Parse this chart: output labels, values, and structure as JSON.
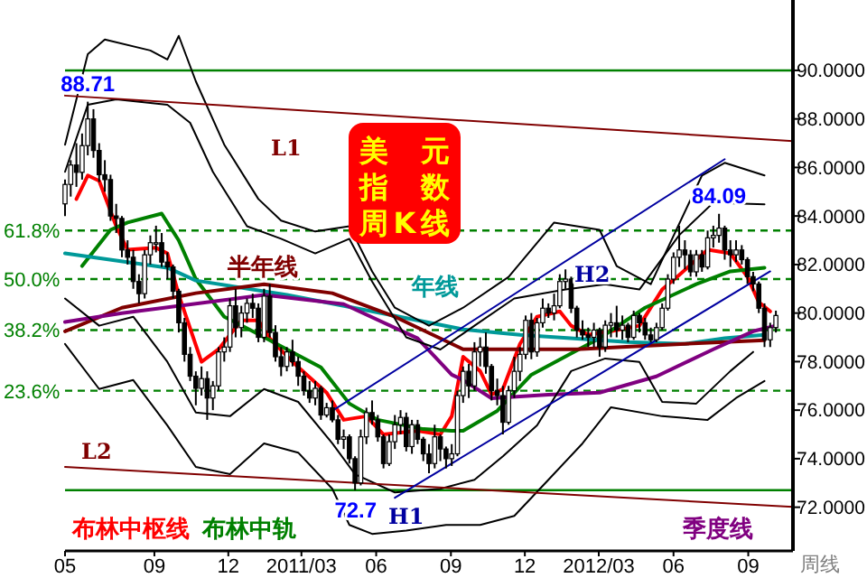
{
  "chart_data": {
    "type": "candlestick",
    "title": "美元指数周K线",
    "x": [
      "2010-05-14",
      "2010-05-21",
      "2010-05-28",
      "2010-06-04",
      "2010-06-11",
      "2010-06-18",
      "2010-06-25",
      "2010-07-02",
      "2010-07-09",
      "2010-07-16",
      "2010-07-23",
      "2010-07-30",
      "2010-08-06",
      "2010-08-13",
      "2010-08-20",
      "2010-08-27",
      "2010-09-03",
      "2010-09-10",
      "2010-09-17",
      "2010-09-24",
      "2010-10-01",
      "2010-10-08",
      "2010-10-15",
      "2010-10-22",
      "2010-10-29",
      "2010-11-05",
      "2010-11-12",
      "2010-11-19",
      "2010-11-26",
      "2010-12-03",
      "2010-12-10",
      "2010-12-17",
      "2010-12-24",
      "2010-12-31",
      "2011-01-07",
      "2011-01-14",
      "2011-01-21",
      "2011-01-28",
      "2011-02-04",
      "2011-02-11",
      "2011-02-18",
      "2011-02-25",
      "2011-03-04",
      "2011-03-11",
      "2011-03-18",
      "2011-03-25",
      "2011-04-01",
      "2011-04-08",
      "2011-04-15",
      "2011-04-22",
      "2011-04-29",
      "2011-05-06",
      "2011-05-13",
      "2011-05-20",
      "2011-05-27",
      "2011-06-03",
      "2011-06-10",
      "2011-06-17",
      "2011-06-24",
      "2011-07-01",
      "2011-07-08",
      "2011-07-15",
      "2011-07-22",
      "2011-07-29",
      "2011-08-05",
      "2011-08-12",
      "2011-08-19",
      "2011-08-26",
      "2011-09-02",
      "2011-09-09",
      "2011-09-16",
      "2011-09-23",
      "2011-09-30",
      "2011-10-07",
      "2011-10-14",
      "2011-10-21",
      "2011-10-28",
      "2011-11-04",
      "2011-11-11",
      "2011-11-18",
      "2011-11-25",
      "2011-12-02",
      "2011-12-09",
      "2011-12-16",
      "2011-12-23",
      "2011-12-30",
      "2012-01-06",
      "2012-01-13",
      "2012-01-20",
      "2012-01-27",
      "2012-02-03",
      "2012-02-10",
      "2012-02-17",
      "2012-02-24",
      "2012-03-02",
      "2012-03-09",
      "2012-03-16",
      "2012-03-23",
      "2012-03-30",
      "2012-04-06",
      "2012-04-13",
      "2012-04-20",
      "2012-04-27",
      "2012-05-04",
      "2012-05-11",
      "2012-05-18",
      "2012-05-25",
      "2012-06-01",
      "2012-06-08",
      "2012-06-15",
      "2012-06-22",
      "2012-06-29",
      "2012-07-06",
      "2012-07-13",
      "2012-07-20",
      "2012-07-27",
      "2012-08-03",
      "2012-08-10",
      "2012-08-17",
      "2012-08-24",
      "2012-08-31",
      "2012-09-07",
      "2012-09-14",
      "2012-09-21",
      "2012-09-28",
      "2012-10-05"
    ],
    "ohlc": [
      [
        84.5,
        85.5,
        84.0,
        85.3
      ],
      [
        85.3,
        86.3,
        84.8,
        86.1
      ],
      [
        86.1,
        87.0,
        85.2,
        85.8
      ],
      [
        85.8,
        87.4,
        85.5,
        86.9
      ],
      [
        86.9,
        88.71,
        86.5,
        88.0
      ],
      [
        88.0,
        88.4,
        86.4,
        86.7
      ],
      [
        86.7,
        87.0,
        85.4,
        85.7
      ],
      [
        85.7,
        86.3,
        85.0,
        85.5
      ],
      [
        85.5,
        85.7,
        83.8,
        84.0
      ],
      [
        84.0,
        84.5,
        83.3,
        83.9
      ],
      [
        83.9,
        84.0,
        82.3,
        82.6
      ],
      [
        82.6,
        83.0,
        82.0,
        82.3
      ],
      [
        82.3,
        82.6,
        81.0,
        81.3
      ],
      [
        81.3,
        81.6,
        80.4,
        80.8
      ],
      [
        80.8,
        82.6,
        80.6,
        82.4
      ],
      [
        82.4,
        83.2,
        82.0,
        82.9
      ],
      [
        82.9,
        83.6,
        82.5,
        82.9
      ],
      [
        82.9,
        83.3,
        81.9,
        82.1
      ],
      [
        82.1,
        82.5,
        81.4,
        81.9
      ],
      [
        81.9,
        82.0,
        80.6,
        80.9
      ],
      [
        80.9,
        81.0,
        79.2,
        79.6
      ],
      [
        79.6,
        79.8,
        78.0,
        78.3
      ],
      [
        78.3,
        78.6,
        77.2,
        77.4
      ],
      [
        77.4,
        77.6,
        76.2,
        76.9
      ],
      [
        76.9,
        77.8,
        76.6,
        77.3
      ],
      [
        77.3,
        77.6,
        75.6,
        76.5
      ],
      [
        76.5,
        77.2,
        76.0,
        77.0
      ],
      [
        77.0,
        78.6,
        76.8,
        78.4
      ],
      [
        78.4,
        79.0,
        78.0,
        78.6
      ],
      [
        78.6,
        80.6,
        78.4,
        80.3
      ],
      [
        80.3,
        81.0,
        79.0,
        79.4
      ],
      [
        79.4,
        80.3,
        79.0,
        80.0
      ],
      [
        80.0,
        80.6,
        79.6,
        80.4
      ],
      [
        80.4,
        80.8,
        79.8,
        80.2
      ],
      [
        80.2,
        80.4,
        78.8,
        79.0
      ],
      [
        79.0,
        81.0,
        78.8,
        80.7
      ],
      [
        80.7,
        81.2,
        79.0,
        79.2
      ],
      [
        79.2,
        79.5,
        78.0,
        78.2
      ],
      [
        78.2,
        78.6,
        77.4,
        77.8
      ],
      [
        77.8,
        78.6,
        77.6,
        78.4
      ],
      [
        78.4,
        78.9,
        77.8,
        78.0
      ],
      [
        78.0,
        78.2,
        77.0,
        77.4
      ],
      [
        77.4,
        77.6,
        76.6,
        76.8
      ],
      [
        76.8,
        77.2,
        76.3,
        76.5
      ],
      [
        76.5,
        77.2,
        76.2,
        76.9
      ],
      [
        76.9,
        77.0,
        75.6,
        75.8
      ],
      [
        75.8,
        76.3,
        75.7,
        76.1
      ],
      [
        76.1,
        76.4,
        75.5,
        75.6
      ],
      [
        75.6,
        75.8,
        74.6,
        74.8
      ],
      [
        74.8,
        75.2,
        74.4,
        74.9
      ],
      [
        74.9,
        75.0,
        73.8,
        74.0
      ],
      [
        74.0,
        74.1,
        72.7,
        73.0
      ],
      [
        73.0,
        75.2,
        72.9,
        74.9
      ],
      [
        74.9,
        76.1,
        74.6,
        75.9
      ],
      [
        75.9,
        76.4,
        75.4,
        75.6
      ],
      [
        75.6,
        75.8,
        74.7,
        74.9
      ],
      [
        74.9,
        75.0,
        73.6,
        73.8
      ],
      [
        73.8,
        75.0,
        73.7,
        74.7
      ],
      [
        74.7,
        75.8,
        74.4,
        75.4
      ],
      [
        75.4,
        76.0,
        75.0,
        75.7
      ],
      [
        75.7,
        75.9,
        74.3,
        74.5
      ],
      [
        74.5,
        75.6,
        74.2,
        75.4
      ],
      [
        75.4,
        75.6,
        74.6,
        74.8
      ],
      [
        74.8,
        74.9,
        73.9,
        74.2
      ],
      [
        74.2,
        74.6,
        73.4,
        73.8
      ],
      [
        73.8,
        75.4,
        73.6,
        74.9
      ],
      [
        74.9,
        75.0,
        73.9,
        74.4
      ],
      [
        74.4,
        74.5,
        73.6,
        74.0
      ],
      [
        74.0,
        74.6,
        73.7,
        74.2
      ],
      [
        74.2,
        76.8,
        74.1,
        76.6
      ],
      [
        76.6,
        77.8,
        76.3,
        77.6
      ],
      [
        77.6,
        77.9,
        76.5,
        77.0
      ],
      [
        77.0,
        78.8,
        76.8,
        78.4
      ],
      [
        78.4,
        79.0,
        77.8,
        78.6
      ],
      [
        78.6,
        79.2,
        77.5,
        77.8
      ],
      [
        77.8,
        77.9,
        76.4,
        76.8
      ],
      [
        76.8,
        77.3,
        76.2,
        76.6
      ],
      [
        76.6,
        77.0,
        75.0,
        75.5
      ],
      [
        75.5,
        77.0,
        75.4,
        76.8
      ],
      [
        76.8,
        78.2,
        76.5,
        77.6
      ],
      [
        77.6,
        78.6,
        77.2,
        78.3
      ],
      [
        78.3,
        79.9,
        78.1,
        79.7
      ],
      [
        79.7,
        80.0,
        78.1,
        78.4
      ],
      [
        78.4,
        79.8,
        78.2,
        79.6
      ],
      [
        79.6,
        80.6,
        79.4,
        80.2
      ],
      [
        80.2,
        80.4,
        79.8,
        80.0
      ],
      [
        80.0,
        80.8,
        79.7,
        80.3
      ],
      [
        80.3,
        81.6,
        80.2,
        81.3
      ],
      [
        81.3,
        81.8,
        81.0,
        81.4
      ],
      [
        81.4,
        81.5,
        80.0,
        80.2
      ],
      [
        80.2,
        80.3,
        79.0,
        79.3
      ],
      [
        79.3,
        79.7,
        78.9,
        79.1
      ],
      [
        79.1,
        79.4,
        78.6,
        79.0
      ],
      [
        79.0,
        79.6,
        78.6,
        79.3
      ],
      [
        79.3,
        79.4,
        78.2,
        78.6
      ],
      [
        78.6,
        79.7,
        78.4,
        79.5
      ],
      [
        79.5,
        80.0,
        79.0,
        79.6
      ],
      [
        79.6,
        80.3,
        79.0,
        79.3
      ],
      [
        79.3,
        79.9,
        78.9,
        79.5
      ],
      [
        79.5,
        79.6,
        78.8,
        79.0
      ],
      [
        79.0,
        80.1,
        78.9,
        79.9
      ],
      [
        79.9,
        80.0,
        79.2,
        79.6
      ],
      [
        79.6,
        79.8,
        78.9,
        79.1
      ],
      [
        79.1,
        79.4,
        78.8,
        78.9
      ],
      [
        78.9,
        79.6,
        78.8,
        79.4
      ],
      [
        79.4,
        80.4,
        79.3,
        80.2
      ],
      [
        80.2,
        81.6,
        80.1,
        81.4
      ],
      [
        81.4,
        82.5,
        81.2,
        82.3
      ],
      [
        82.3,
        83.6,
        81.9,
        82.6
      ],
      [
        82.6,
        83.0,
        81.8,
        82.4
      ],
      [
        82.4,
        82.6,
        81.5,
        81.7
      ],
      [
        81.7,
        82.6,
        81.5,
        82.4
      ],
      [
        82.4,
        82.6,
        81.7,
        81.9
      ],
      [
        81.9,
        83.4,
        81.8,
        83.1
      ],
      [
        83.1,
        83.6,
        82.7,
        83.2
      ],
      [
        83.2,
        84.09,
        82.9,
        83.5
      ],
      [
        83.5,
        83.6,
        82.2,
        82.6
      ],
      [
        82.6,
        83.0,
        81.9,
        82.4
      ],
      [
        82.4,
        83.0,
        82.1,
        82.6
      ],
      [
        82.6,
        82.8,
        82.0,
        82.2
      ],
      [
        82.2,
        82.3,
        81.2,
        81.5
      ],
      [
        81.5,
        81.7,
        80.9,
        81.2
      ],
      [
        81.2,
        81.3,
        80.0,
        80.2
      ],
      [
        80.2,
        80.4,
        78.6,
        78.9
      ],
      [
        78.9,
        79.6,
        78.6,
        79.4
      ],
      [
        79.4,
        80.1,
        79.2,
        79.9
      ]
    ],
    "series": [
      {
        "name": "布林中枢线",
        "type": "line",
        "color": "#ff0000",
        "x": [
          "2010-05-28",
          "2010-06-11",
          "2010-06-25",
          "2010-07-16",
          "2010-07-30",
          "2010-09-03",
          "2010-09-17",
          "2010-10-01",
          "2010-10-29",
          "2010-11-19",
          "2010-12-17",
          "2011-01-07",
          "2011-01-21",
          "2011-02-18",
          "2011-04-01",
          "2011-04-22",
          "2011-05-20",
          "2011-06-10",
          "2011-07-22",
          "2011-08-19",
          "2011-09-02",
          "2011-09-16",
          "2011-10-07",
          "2011-10-21",
          "2011-11-04",
          "2011-11-25",
          "2011-12-16",
          "2012-01-13",
          "2012-01-27",
          "2012-02-17",
          "2012-03-16",
          "2012-04-20",
          "2012-05-18",
          "2012-06-08",
          "2012-07-13",
          "2012-08-10",
          "2012-08-31",
          "2012-09-14",
          "2012-09-28"
        ],
        "values": [
          84.7,
          85.67,
          85.45,
          83.58,
          82.61,
          82.69,
          82.46,
          80.75,
          77.99,
          78.51,
          79.7,
          79.7,
          78.96,
          77.99,
          76.72,
          75.6,
          75.75,
          75.0,
          75.15,
          75.0,
          75.75,
          78.2,
          77.61,
          76.64,
          76.87,
          78.73,
          79.85,
          80.07,
          79.48,
          79.1,
          79.25,
          79.48,
          80.97,
          81.57,
          82.61,
          82.46,
          81.49,
          80.45,
          80.07
        ]
      },
      {
        "name": "布林中轨",
        "type": "line",
        "color": "#008000",
        "x": [
          "2010-06-04",
          "2010-07-09",
          "2010-07-30",
          "2010-09-10",
          "2010-10-01",
          "2010-10-22",
          "2010-11-26",
          "2010-12-31",
          "2011-02-11",
          "2011-03-25",
          "2011-04-29",
          "2011-06-03",
          "2011-07-29",
          "2011-09-02",
          "2011-09-16",
          "2011-10-28",
          "2011-12-09",
          "2012-01-20",
          "2012-03-02",
          "2012-04-27",
          "2012-06-29",
          "2012-08-10",
          "2012-09-21"
        ],
        "values": [
          81.94,
          83.43,
          83.73,
          84.1,
          82.99,
          81.4,
          79.85,
          79.25,
          78.51,
          77.76,
          76.27,
          75.6,
          75.22,
          75.15,
          75.15,
          75.97,
          77.46,
          78.21,
          78.96,
          80.22,
          81.19,
          81.72,
          81.87
        ]
      },
      {
        "name": "年线",
        "type": "line",
        "color": "#009999",
        "x": [
          "2010-05-14",
          "2010-09-17",
          "2010-10-22",
          "2011-02-11",
          "2011-05-27",
          "2011-09-16",
          "2011-11-25",
          "2012-04-06",
          "2012-06-15",
          "2012-08-03",
          "2012-09-21"
        ],
        "values": [
          82.46,
          81.87,
          81.34,
          80.75,
          80.07,
          79.33,
          79.1,
          78.81,
          78.73,
          78.96,
          79.1
        ]
      },
      {
        "name": "半年线",
        "type": "line",
        "color": "#800000",
        "x": [
          "2010-05-14",
          "2010-07-23",
          "2010-10-22",
          "2011-01-14",
          "2011-04-08",
          "2011-06-24",
          "2011-09-16",
          "2011-11-25",
          "2012-02-03",
          "2012-06-15",
          "2012-09-21"
        ],
        "values": [
          79.25,
          80.22,
          80.82,
          81.19,
          80.82,
          79.85,
          78.51,
          78.51,
          78.51,
          78.73,
          78.88
        ]
      },
      {
        "name": "季度线",
        "type": "line",
        "color": "#800080",
        "x": [
          "2010-05-14",
          "2010-07-23",
          "2011-01-14",
          "2011-04-22",
          "2011-07-22",
          "2011-09-02",
          "2011-09-16",
          "2011-10-21",
          "2011-12-30",
          "2012-03-02",
          "2012-05-11",
          "2012-07-20",
          "2012-09-07",
          "2012-10-05"
        ],
        "values": [
          79.63,
          80.0,
          80.75,
          80.37,
          78.96,
          77.46,
          77.24,
          76.49,
          76.64,
          76.72,
          77.39,
          78.51,
          79.25,
          79.48
        ]
      },
      {
        "type": "line",
        "color": "#000000",
        "x": [
          "2010-05-14",
          "2010-06-11",
          "2010-07-02",
          "2010-08-27",
          "2010-09-17",
          "2010-10-01",
          "2010-10-22",
          "2010-11-26",
          "2011-01-07",
          "2011-02-04",
          "2011-03-18",
          "2011-04-29",
          "2011-05-27",
          "2011-06-24",
          "2011-08-05",
          "2011-09-16",
          "2011-11-11",
          "2012-01-06",
          "2012-03-02",
          "2012-03-23",
          "2012-05-04",
          "2012-07-06",
          "2012-08-03",
          "2012-09-21"
        ],
        "values": [
          86.94,
          90.67,
          91.27,
          90.82,
          90.45,
          91.42,
          89.55,
          86.94,
          84.7,
          83.81,
          83.36,
          83.58,
          81.72,
          80.22,
          79.48,
          80.22,
          81.49,
          83.73,
          83.43,
          81.94,
          81.19,
          85.67,
          86.19,
          85.67
        ]
      },
      {
        "type": "line",
        "color": "#000000",
        "x": [
          "2010-05-14",
          "2010-06-11",
          "2010-07-16",
          "2010-09-17",
          "2010-10-15",
          "2010-11-12",
          "2010-12-24",
          "2011-02-04",
          "2011-03-18",
          "2011-04-29",
          "2011-05-27",
          "2011-07-08",
          "2011-08-19",
          "2011-09-30",
          "2011-11-18",
          "2012-01-20",
          "2012-03-09",
          "2012-04-20",
          "2012-06-08",
          "2012-07-20",
          "2012-09-21"
        ],
        "values": [
          85.82,
          88.58,
          88.81,
          88.58,
          87.84,
          85.82,
          83.58,
          83.06,
          82.46,
          83.06,
          81.3,
          79.0,
          78.5,
          79.48,
          80.6,
          80.97,
          81.19,
          80.97,
          83.21,
          84.55,
          84.48
        ]
      },
      {
        "type": "line",
        "color": "#000000",
        "x": [
          "2010-05-14",
          "2010-06-25",
          "2010-08-06",
          "2010-09-17",
          "2010-10-22",
          "2010-12-03",
          "2011-01-14",
          "2011-02-25",
          "2011-04-08",
          "2011-05-06",
          "2011-06-24",
          "2011-08-19",
          "2011-09-30",
          "2011-11-04",
          "2011-12-16",
          "2012-01-27",
          "2012-03-09",
          "2012-04-20",
          "2012-05-18",
          "2012-06-29",
          "2012-08-10",
          "2012-09-07"
        ],
        "values": [
          80.6,
          79.48,
          79.85,
          77.99,
          75.9,
          75.75,
          76.87,
          76.34,
          74.63,
          73.36,
          72.61,
          72.76,
          73.13,
          74.1,
          75.37,
          77.61,
          78.13,
          77.99,
          76.34,
          76.27,
          77.61,
          78.4
        ]
      },
      {
        "type": "line",
        "color": "#000000",
        "x": [
          "2010-05-14",
          "2010-06-25",
          "2010-08-06",
          "2010-09-17",
          "2010-10-22",
          "2010-12-03",
          "2011-01-14",
          "2011-02-25",
          "2011-04-08",
          "2011-04-29",
          "2011-05-27",
          "2011-07-08",
          "2011-08-26",
          "2011-10-07",
          "2011-11-18",
          "2011-12-30",
          "2012-02-10",
          "2012-03-16",
          "2012-05-18",
          "2012-07-13",
          "2012-08-17",
          "2012-09-21"
        ],
        "values": [
          78.73,
          76.87,
          77.24,
          75.37,
          73.66,
          73.36,
          74.63,
          74.25,
          72.76,
          71.27,
          70.9,
          71.04,
          71.27,
          71.27,
          71.64,
          73.13,
          74.63,
          76.12,
          75.75,
          75.6,
          76.5,
          77.2
        ]
      },
      {
        "name": "L1",
        "type": "line",
        "color": "#800000",
        "x": [
          "2010-05-14",
          "2012-10-26"
        ],
        "values": [
          88.96,
          87.09
        ]
      },
      {
        "name": "L2",
        "type": "line",
        "color": "#800000",
        "x": [
          "2010-05-14",
          "2012-10-26"
        ],
        "values": [
          73.66,
          72.01
        ]
      },
      {
        "name": "H1",
        "type": "line",
        "color": "#0000a0",
        "x": [
          "2011-06-24",
          "2012-09-28"
        ],
        "values": [
          72.39,
          81.72
        ]
      },
      {
        "name": "H2",
        "type": "line",
        "color": "#0000a0",
        "x": [
          "2011-04-08",
          "2012-08-03"
        ],
        "values": [
          75.97,
          86.34
        ]
      }
    ],
    "xlim": [
      "2010-05-14",
      "2012-10-26"
    ],
    "ylim": [
      70.2,
      92.9
    ],
    "xticks": [
      {
        "value": "2010-05-14",
        "label": "05"
      },
      {
        "value": "2010-09-01",
        "label": "09"
      },
      {
        "value": "2010-12-01",
        "label": "12"
      },
      {
        "value": "2011-03-01",
        "label": "2011/03"
      },
      {
        "value": "2011-06-01",
        "label": "06"
      },
      {
        "value": "2011-09-01",
        "label": "09"
      },
      {
        "value": "2011-12-01",
        "label": "12"
      },
      {
        "value": "2012-03-01",
        "label": "2012/03"
      },
      {
        "value": "2012-06-01",
        "label": "06"
      },
      {
        "value": "2012-09-01",
        "label": "09"
      }
    ],
    "yticks": [
      {
        "value": 72,
        "label": "72.0000"
      },
      {
        "value": 74,
        "label": "74.0000"
      },
      {
        "value": 76,
        "label": "76.0000"
      },
      {
        "value": 78,
        "label": "78.0000"
      },
      {
        "value": 80,
        "label": "80.0000"
      },
      {
        "value": 82,
        "label": "82.0000"
      },
      {
        "value": 84,
        "label": "84.0000"
      },
      {
        "value": 86,
        "label": "86.0000"
      },
      {
        "value": 88,
        "label": "88.0000"
      },
      {
        "value": 90,
        "label": "90.0000"
      }
    ],
    "ref_lines": [
      {
        "axis": "y",
        "value": 90,
        "color": "#008000",
        "line_style": "solid"
      },
      {
        "axis": "y",
        "value": 83.4,
        "color": "#008000",
        "line_style": "dashed"
      },
      {
        "axis": "y",
        "value": 81.4,
        "color": "#008000",
        "line_style": "dashed"
      },
      {
        "axis": "y",
        "value": 79.3,
        "color": "#008000",
        "line_style": "dashed"
      },
      {
        "axis": "y",
        "value": 76.8,
        "color": "#008000",
        "line_style": "dashed"
      },
      {
        "axis": "y",
        "value": 72.7,
        "color": "#008000",
        "line_style": "solid"
      }
    ],
    "annotations": [
      "周线",
      {
        "text": "61.8%",
        "x": "2010-05-14",
        "y": 83.4
      },
      {
        "text": "50.0%",
        "x": "2010-05-14",
        "y": 81.4
      },
      {
        "text": "38.2%",
        "x": "2010-05-14",
        "y": 79.3
      },
      {
        "text": "23.6%",
        "x": "2010-05-14",
        "y": 76.8
      },
      {
        "text": "88.71",
        "x": "2010-06-11",
        "y": 88.71
      },
      {
        "text": "84.09",
        "x": "2012-07-27",
        "y": 84.09
      },
      {
        "text": "72.7",
        "x": "2011-05-06",
        "y": 72.7
      }
    ]
  }
}
